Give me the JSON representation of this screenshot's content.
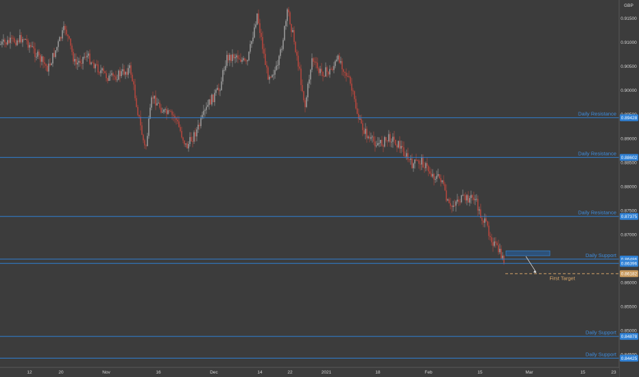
{
  "chart_data": {
    "type": "candlestick",
    "currency": "GBP",
    "x_ticks": [
      "12",
      "20",
      "Nov",
      "16",
      "Dec",
      "14",
      "22",
      "2021",
      "18",
      "Feb",
      "15",
      "Mar",
      "15",
      "23"
    ],
    "y_ticks": [
      "0.91500",
      "0.91000",
      "0.90500",
      "0.90000",
      "0.89500",
      "0.89000",
      "0.88500",
      "0.88000",
      "0.87500",
      "0.87000",
      "0.86500",
      "0.86000",
      "0.85500",
      "0.85000",
      "0.84500"
    ],
    "y_tick_values": [
      0.915,
      0.91,
      0.905,
      0.9,
      0.895,
      0.89,
      0.885,
      0.88,
      0.875,
      0.87,
      0.865,
      0.86,
      0.855,
      0.85,
      0.845
    ],
    "levels": [
      {
        "label": "Daily Resistance",
        "value": 0.89428,
        "badge": "0.89428"
      },
      {
        "label": "Daily Resistance",
        "value": 0.88602,
        "badge": "0.88602"
      },
      {
        "label": "Daily Resistance",
        "value": 0.87375,
        "badge": "0.87375"
      },
      {
        "label": "Daily Support",
        "value": 0.86486,
        "badge": "0.86486"
      },
      {
        "label": "Daily Support",
        "value": 0.84878,
        "badge": "0.84878"
      },
      {
        "label": "Daily Support",
        "value": 0.84425,
        "badge": "0.84425"
      }
    ],
    "current_price": {
      "value": 0.86396,
      "badge": "0.86396"
    },
    "target": {
      "label": "First Target",
      "value": 0.86182,
      "badge": "0.86182"
    },
    "colors": {
      "up": "#9a9a9a",
      "down": "#b5473e",
      "level": "#2f80d4",
      "target": "#d8a66a",
      "background": "#3c3c3c"
    }
  }
}
